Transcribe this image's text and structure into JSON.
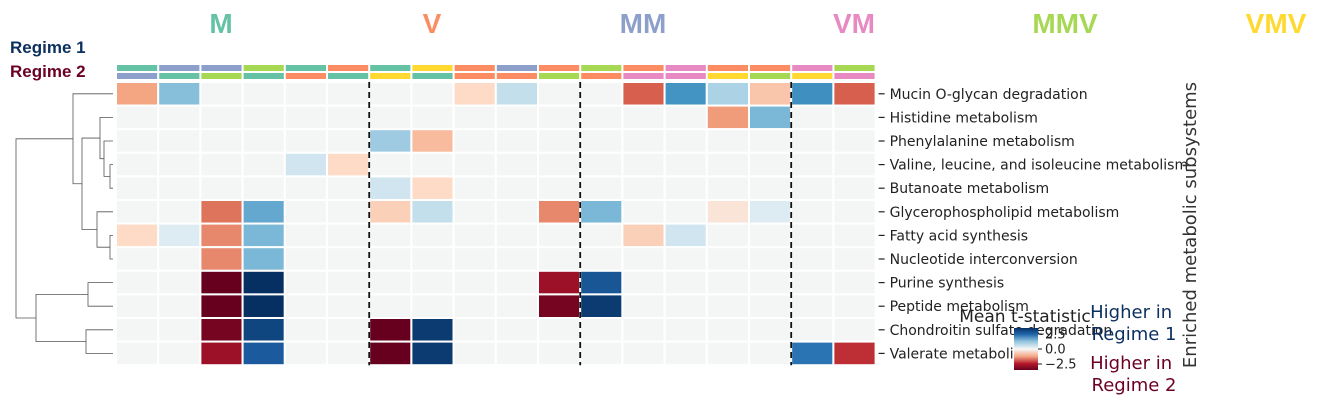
{
  "groups": [
    {
      "name": "M",
      "color": "#66c2a5"
    },
    {
      "name": "V",
      "color": "#fc8d62"
    },
    {
      "name": "MM",
      "color": "#8da0cb"
    },
    {
      "name": "VM",
      "color": "#e78ac3"
    },
    {
      "name": "MMV",
      "color": "#a6d854"
    },
    {
      "name": "VMV",
      "color": "#ffd92f"
    }
  ],
  "regime_labels": [
    {
      "text": "Regime 1",
      "color": "#0b2f5e"
    },
    {
      "text": "Regime 2",
      "color": "#6b0024"
    }
  ],
  "column_colors": {
    "regime1": [
      "M",
      "MM",
      "MM",
      "MMV",
      "M",
      "V",
      "M",
      "VMV",
      "V",
      "MM",
      "V",
      "MMV",
      "V",
      "VM",
      "V",
      "V",
      "VM",
      "MMV"
    ],
    "regime2": [
      "MM",
      "M",
      "MMV",
      "M",
      "V",
      "M",
      "VMV",
      "M",
      "V",
      "V",
      "MMV",
      "V",
      "VM",
      "VM",
      "VMV",
      "MMV",
      "VMV",
      "VM"
    ]
  },
  "block_separators_after_column": [
    5,
    10,
    15
  ],
  "chart_data": {
    "type": "heatmap",
    "ylabel": "Enriched metabolic subsystems",
    "colorbar": {
      "title": "Mean t-statistic",
      "ticks": [
        2.5,
        0.0,
        -2.5
      ],
      "tick_labels": [
        "2.5",
        "0.0",
        "−2.5"
      ],
      "range": [
        -3.5,
        3.5
      ],
      "colormap": "RdBu (red = negative, blue = positive)"
    },
    "legend_notes": {
      "higher_regime1": "Higher in\nRegime 1",
      "higher_regime2": "Higher in\nRegime 2",
      "color_regime1": "#0b2f5e",
      "color_regime2": "#6b0024"
    },
    "rows": [
      "Mucin O-glycan degradation",
      "Histidine metabolism",
      "Phenylalanine metabolism",
      "Valine, leucine, and isoleucine metabolism",
      "Butanoate metabolism",
      "Glycerophospholipid metabolism",
      "Fatty acid synthesis",
      "Nucleotide interconversion",
      "Purine synthesis",
      "Peptide metabolism",
      "Chondroitin sulfate degradation",
      "Valerate metabolism"
    ],
    "values": [
      [
        -0.8,
        0.9,
        0,
        0,
        0,
        0,
        0,
        0,
        -0.3,
        0.4,
        0,
        0,
        -1.5,
        1.5,
        0.6,
        -0.5,
        1.6,
        -1.5
      ],
      [
        0,
        0,
        0,
        0,
        0,
        0,
        0,
        0,
        0,
        0,
        0,
        0,
        0,
        0,
        -0.9,
        1.0,
        0,
        0
      ],
      [
        0,
        0,
        0,
        0,
        0,
        0,
        0.7,
        -0.6,
        0,
        0,
        0,
        0,
        0,
        0,
        0,
        0,
        0,
        0
      ],
      [
        0,
        0,
        0,
        0,
        0.3,
        -0.3,
        0,
        0,
        0,
        0,
        0,
        0,
        0,
        0,
        0,
        0,
        0,
        0
      ],
      [
        0,
        0,
        0,
        0,
        0,
        0,
        0.3,
        -0.3,
        0,
        0,
        0,
        0,
        0,
        0,
        0,
        0,
        0,
        0
      ],
      [
        0,
        0,
        -1.3,
        1.2,
        0,
        0,
        -0.4,
        0.4,
        0,
        0,
        -1.1,
        1.0,
        0,
        0,
        -0.2,
        0.2,
        0,
        0
      ],
      [
        -0.3,
        0.2,
        -1.1,
        1.0,
        0,
        0,
        0,
        0,
        0,
        0,
        0,
        0,
        -0.4,
        0.3,
        0,
        0,
        0,
        0
      ],
      [
        0,
        0,
        -1.1,
        1.0,
        0,
        0,
        0,
        0,
        0,
        0,
        0,
        0,
        0,
        0,
        0,
        0,
        0,
        0
      ],
      [
        0,
        0,
        -3.5,
        3.5,
        0,
        0,
        0,
        0,
        0,
        0,
        -2.8,
        2.8,
        0,
        0,
        0,
        0,
        0,
        0
      ],
      [
        0,
        0,
        -3.5,
        3.5,
        0,
        0,
        0,
        0,
        0,
        0,
        -3.3,
        3.3,
        0,
        0,
        0,
        0,
        0,
        0
      ],
      [
        0,
        0,
        -3.3,
        3.1,
        0,
        0,
        -3.5,
        3.3,
        0,
        0,
        0,
        0,
        0,
        0,
        0,
        0,
        0,
        0
      ],
      [
        0,
        0,
        -2.8,
        2.7,
        0,
        0,
        -3.5,
        3.3,
        0,
        0,
        0,
        0,
        0,
        0,
        0,
        0,
        2.2,
        -2.2
      ]
    ]
  }
}
